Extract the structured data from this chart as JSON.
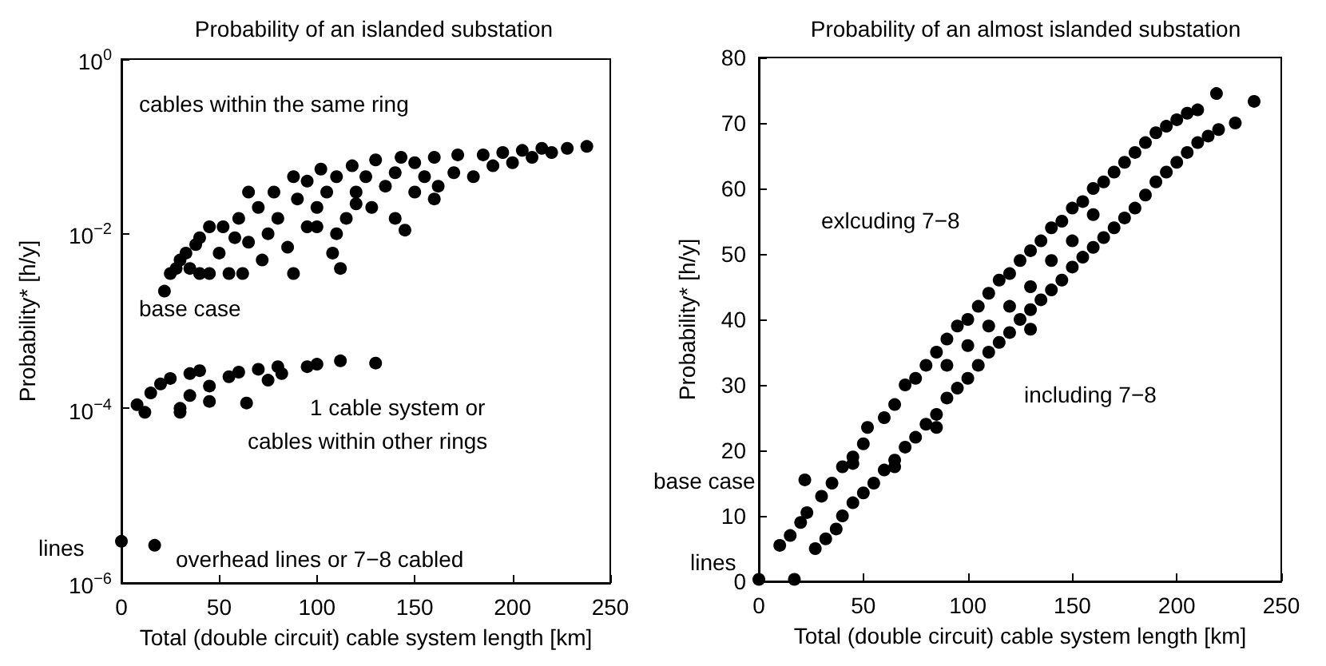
{
  "chart_data": [
    {
      "type": "scatter",
      "title": "Probability of an islanded substation",
      "xlabel": "Total (double circuit) cable system length [km]",
      "ylabel": "Probability* [h/y]",
      "log": "y",
      "grid": false,
      "marker": "circle",
      "xlim": [
        0,
        250
      ],
      "xticks": [
        0,
        50,
        100,
        150,
        200,
        250
      ],
      "ylim": [
        1e-06,
        1
      ],
      "yticks": [
        {
          "value": 1e-06,
          "label": "10$^{−6}$"
        },
        {
          "value": 0.0001,
          "label": "10$^{−4}$"
        },
        {
          "value": 0.01,
          "label": "10$^{−2}$"
        },
        {
          "value": 1,
          "label": "10$^{0}$"
        }
      ],
      "annotations": [
        "cables within the same ring",
        "base case",
        "1 cable system or",
        "cables within other rings",
        "lines",
        "overhead lines or 7−8 cabled"
      ],
      "series": [
        {
          "color": "#000000",
          "x": [
            22,
            25,
            28,
            30,
            33,
            35,
            38,
            40,
            40,
            45,
            45,
            50,
            52,
            55,
            58,
            60,
            62,
            65,
            65,
            70,
            72,
            75,
            78,
            80,
            85,
            88,
            88,
            90,
            95,
            95,
            100,
            102,
            105,
            108,
            110,
            112,
            115,
            118,
            120,
            125,
            128,
            130,
            135,
            140,
            140,
            143,
            145,
            150,
            150,
            155,
            160,
            162,
            170,
            172,
            180,
            185,
            190,
            195,
            200,
            205,
            210,
            215,
            220,
            228,
            238,
            100,
            120,
            160,
            110,
            8,
            12,
            15,
            20,
            25,
            30,
            30,
            35,
            35,
            40,
            45,
            45,
            55,
            60,
            64,
            70,
            75,
            80,
            82,
            95,
            100,
            112,
            130,
            0,
            17
          ],
          "values": [
            0.0022,
            0.0035,
            0.004,
            0.005,
            0.006,
            0.004,
            0.0075,
            0.009,
            0.0035,
            0.0035,
            0.012,
            0.006,
            0.012,
            0.0035,
            0.009,
            0.015,
            0.0035,
            0.03,
            0.008,
            0.02,
            0.005,
            0.01,
            0.03,
            0.015,
            0.007,
            0.0035,
            0.045,
            0.025,
            0.012,
            0.04,
            0.02,
            0.055,
            0.03,
            0.006,
            0.045,
            0.004,
            0.015,
            0.06,
            0.03,
            0.045,
            0.02,
            0.07,
            0.035,
            0.05,
            0.015,
            0.075,
            0.011,
            0.03,
            0.065,
            0.045,
            0.075,
            0.035,
            0.05,
            0.08,
            0.045,
            0.08,
            0.06,
            0.085,
            0.065,
            0.09,
            0.075,
            0.095,
            0.085,
            0.095,
            0.1,
            0.012,
            0.022,
            0.025,
            0.01,
            0.00011,
            9e-05,
            0.00015,
            0.00019,
            0.00022,
            0.0001,
            9e-05,
            0.00025,
            0.00014,
            0.00027,
            0.00012,
            0.00018,
            0.00023,
            0.00026,
            0.000115,
            0.00028,
            0.00021,
            0.0003,
            0.00025,
            0.0003,
            0.00032,
            0.00035,
            0.00033,
            3e-06,
            2.7e-06
          ]
        }
      ]
    },
    {
      "type": "scatter",
      "title": "Probability of an almost islanded substation",
      "xlabel": "Total (double circuit) cable system length [km]",
      "ylabel": "Probability* [h/y]",
      "grid": false,
      "marker": "circle",
      "xlim": [
        0,
        250
      ],
      "xticks": [
        0,
        50,
        100,
        150,
        200,
        250
      ],
      "ylim": [
        0,
        80
      ],
      "yticks": [
        0,
        10,
        20,
        30,
        40,
        50,
        60,
        70,
        80
      ],
      "annotations": [
        "exlcuding 7−8",
        "including 7−8",
        "base case",
        "lines"
      ],
      "series": [
        {
          "color": "#000000",
          "x": [
            10,
            15,
            20,
            23,
            30,
            35,
            40,
            45,
            50,
            52,
            60,
            65,
            70,
            75,
            80,
            85,
            90,
            95,
            100,
            105,
            110,
            115,
            120,
            125,
            130,
            135,
            140,
            145,
            150,
            155,
            160,
            165,
            170,
            175,
            180,
            185,
            190,
            195,
            200,
            205,
            210,
            27,
            32,
            37,
            40,
            45,
            50,
            55,
            60,
            65,
            70,
            75,
            80,
            85,
            90,
            95,
            100,
            105,
            110,
            115,
            120,
            125,
            130,
            135,
            140,
            145,
            150,
            155,
            160,
            165,
            170,
            175,
            180,
            185,
            190,
            195,
            200,
            205,
            210,
            215,
            220,
            228,
            90,
            100,
            110,
            120,
            130,
            140,
            150,
            160,
            130,
            65,
            85,
            45,
            22,
            219,
            237,
            0,
            17
          ],
          "values": [
            5.5,
            7,
            9,
            10.5,
            13,
            15,
            17.5,
            19,
            21,
            23.5,
            25,
            27,
            30,
            31,
            33,
            35,
            37,
            39,
            40,
            42,
            44,
            46,
            47,
            49,
            50.5,
            52,
            54,
            55,
            57,
            58,
            60,
            61,
            62.5,
            64,
            65.5,
            67,
            68.5,
            69.5,
            70.5,
            71.5,
            72,
            5,
            6.5,
            8,
            10,
            12,
            13.5,
            15,
            17,
            18.5,
            20.5,
            22,
            24,
            25.5,
            28,
            29.5,
            31,
            33,
            35,
            36.5,
            38,
            40,
            41.5,
            43,
            44.5,
            46,
            48,
            49.5,
            51,
            52.5,
            54,
            55.5,
            57,
            59,
            61,
            62.5,
            64,
            65.5,
            67,
            68,
            69,
            70,
            33,
            36,
            39,
            42,
            45,
            49,
            52,
            56,
            38.5,
            17.5,
            23.5,
            18,
            15.5,
            74.5,
            73.3,
            0.3,
            0.3
          ]
        }
      ]
    }
  ]
}
